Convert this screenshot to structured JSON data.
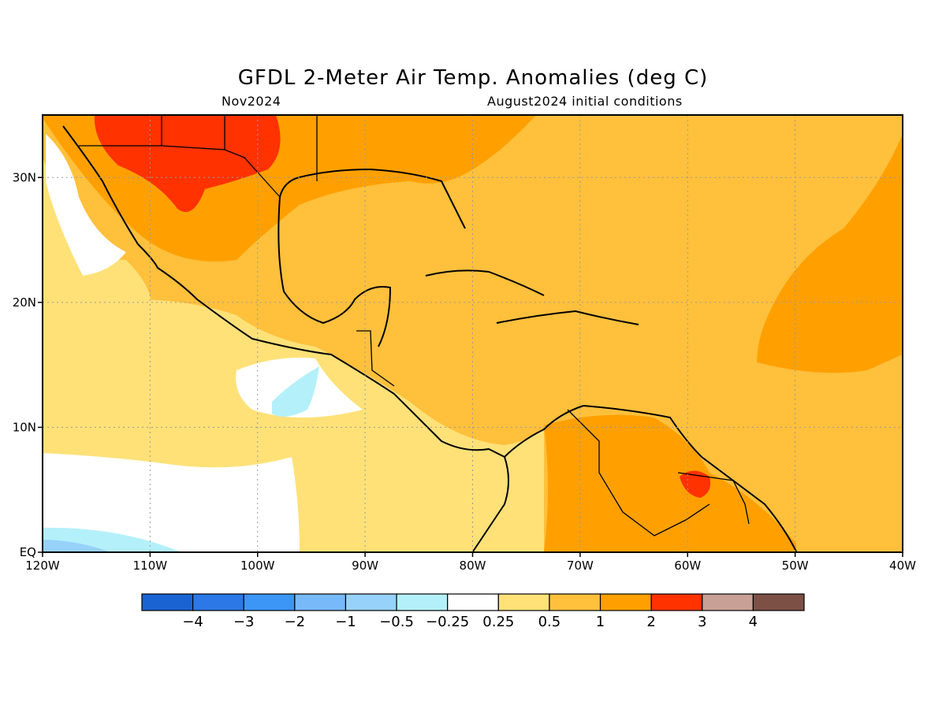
{
  "title": "GFDL 2-Meter Air Temp. Anomalies (deg C)",
  "valid_month": "Nov2024",
  "init_conditions": "August2024 initial conditions",
  "map": {
    "lon_range": [
      -120,
      -40
    ],
    "lat_range": [
      0,
      35
    ],
    "x_ticks": [
      {
        "lon": -120,
        "label": "120W"
      },
      {
        "lon": -110,
        "label": "110W"
      },
      {
        "lon": -100,
        "label": "100W"
      },
      {
        "lon": -90,
        "label": "90W"
      },
      {
        "lon": -80,
        "label": "80W"
      },
      {
        "lon": -70,
        "label": "70W"
      },
      {
        "lon": -60,
        "label": "60W"
      },
      {
        "lon": -50,
        "label": "50W"
      },
      {
        "lon": -40,
        "label": "40W"
      }
    ],
    "y_ticks": [
      {
        "lat": 0,
        "label": "EQ"
      },
      {
        "lat": 10,
        "label": "10N"
      },
      {
        "lat": 20,
        "label": "20N"
      },
      {
        "lat": 30,
        "label": "30N"
      }
    ],
    "grid": "dotted"
  },
  "colorbar": {
    "colors": [
      "#1964d2",
      "#2b78e6",
      "#3c96f5",
      "#78b9fa",
      "#96d2fa",
      "#b4f0fa",
      "#ffffff",
      "#ffe178",
      "#ffc03c",
      "#ffa000",
      "#ff3200",
      "#c8a096",
      "#7d5046"
    ],
    "labels": [
      "−4",
      "−3",
      "−2",
      "−1",
      "−0.5",
      "−0.25",
      "0.25",
      "0.5",
      "1",
      "2",
      "3",
      "4"
    ]
  }
}
